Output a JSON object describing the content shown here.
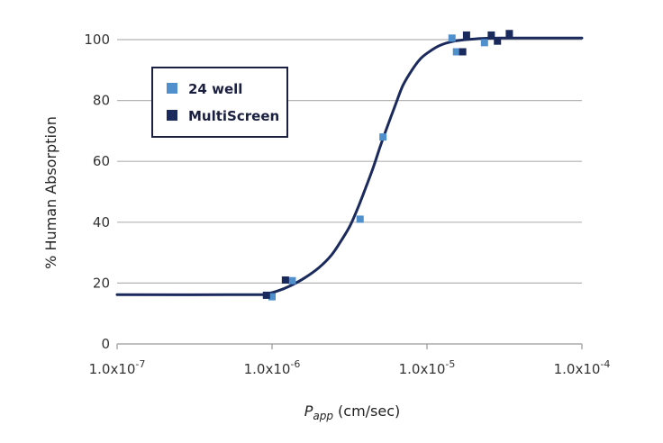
{
  "chart_data": {
    "type": "scatter",
    "xscale": "log",
    "xlim": [
      1e-07,
      0.0001
    ],
    "ylim": [
      0,
      100
    ],
    "x_ticks": [
      1e-07,
      1e-06,
      1e-05,
      0.0001
    ],
    "x_tick_labels": [
      {
        "base": "1.0x10",
        "exp": "-7"
      },
      {
        "base": "1.0x10",
        "exp": "-6"
      },
      {
        "base": "1.0x10",
        "exp": "-5"
      },
      {
        "base": "1.0x10",
        "exp": "-4"
      }
    ],
    "y_ticks": [
      0,
      20,
      40,
      60,
      80,
      100
    ],
    "y_tick_labels": [
      "0",
      "20",
      "40",
      "60",
      "80",
      "100"
    ],
    "ylabel": "% Human Absorption",
    "xlabel": {
      "main": "P",
      "sub": "app",
      "unit": " (cm/sec)"
    },
    "grid": "horizontal",
    "legend_position": "top-left",
    "series": [
      {
        "name": "24 well",
        "color": "#4f8fcc",
        "marker": "square",
        "points": [
          {
            "x": 1e-06,
            "y": 15.5
          },
          {
            "x": 1.35e-06,
            "y": 20.8
          },
          {
            "x": 3.7e-06,
            "y": 41
          },
          {
            "x": 5.2e-06,
            "y": 68
          },
          {
            "x": 1.45e-05,
            "y": 100.5
          },
          {
            "x": 1.55e-05,
            "y": 96
          },
          {
            "x": 2.35e-05,
            "y": 99
          }
        ]
      },
      {
        "name": "MultiScreen",
        "color": "#1b2a5c",
        "marker": "square",
        "points": [
          {
            "x": 9.2e-07,
            "y": 16
          },
          {
            "x": 1.22e-06,
            "y": 21
          },
          {
            "x": 1.7e-05,
            "y": 96
          },
          {
            "x": 1.8e-05,
            "y": 101.5
          },
          {
            "x": 2.6e-05,
            "y": 101.5
          },
          {
            "x": 2.85e-05,
            "y": 99.5
          },
          {
            "x": 3.4e-05,
            "y": 102
          }
        ]
      }
    ],
    "fit_curve": {
      "color": "#1b2a5c",
      "points": [
        {
          "x": 1e-07,
          "y": 16.2
        },
        {
          "x": 8e-07,
          "y": 16.2
        },
        {
          "x": 9.5e-07,
          "y": 16.6
        },
        {
          "x": 1.1e-06,
          "y": 17.5
        },
        {
          "x": 1.3e-06,
          "y": 19
        },
        {
          "x": 1.6e-06,
          "y": 21.5
        },
        {
          "x": 2e-06,
          "y": 25
        },
        {
          "x": 2.4e-06,
          "y": 29
        },
        {
          "x": 2.8e-06,
          "y": 34
        },
        {
          "x": 3.2e-06,
          "y": 39
        },
        {
          "x": 3.6e-06,
          "y": 45
        },
        {
          "x": 4e-06,
          "y": 51
        },
        {
          "x": 4.5e-06,
          "y": 58
        },
        {
          "x": 5e-06,
          "y": 65
        },
        {
          "x": 5.6e-06,
          "y": 72
        },
        {
          "x": 6.3e-06,
          "y": 79
        },
        {
          "x": 7e-06,
          "y": 85
        },
        {
          "x": 8e-06,
          "y": 90
        },
        {
          "x": 9e-06,
          "y": 93.5
        },
        {
          "x": 1e-05,
          "y": 95.5
        },
        {
          "x": 1.2e-05,
          "y": 98
        },
        {
          "x": 1.5e-05,
          "y": 99.5
        },
        {
          "x": 2e-05,
          "y": 100.2
        },
        {
          "x": 3e-05,
          "y": 100.5
        },
        {
          "x": 0.0001,
          "y": 100.5
        }
      ]
    }
  }
}
